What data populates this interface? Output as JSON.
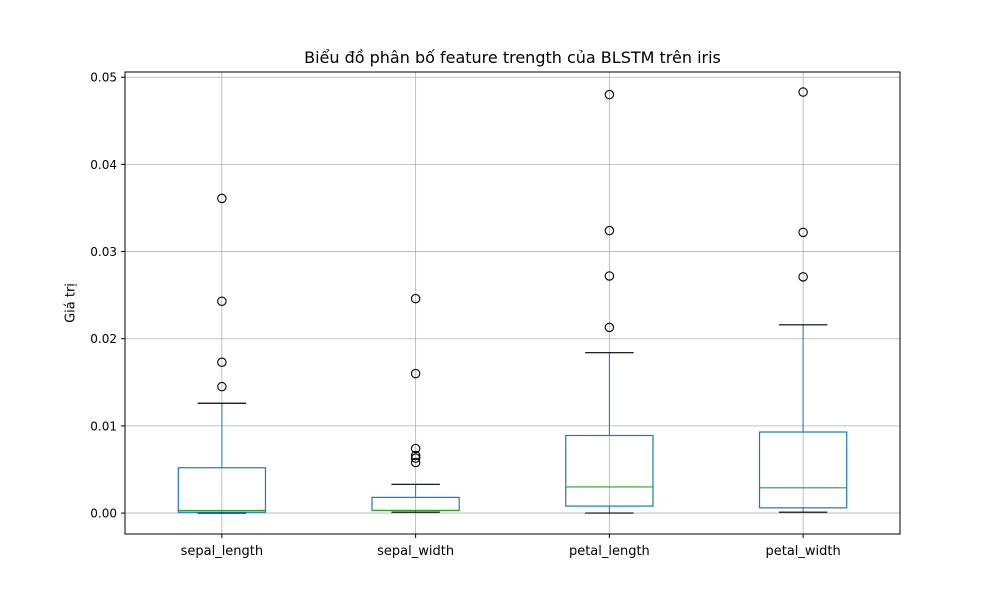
{
  "chart_data": {
    "type": "box",
    "title": "Biểu đồ phân bố feature trength của BLSTM trên iris",
    "xlabel": "",
    "ylabel": "Giá trị",
    "ylim": [
      -0.0024,
      0.0506
    ],
    "yticks": [
      0.0,
      0.01,
      0.02,
      0.03,
      0.04,
      0.05
    ],
    "ytick_labels": [
      "0.00",
      "0.01",
      "0.02",
      "0.03",
      "0.04",
      "0.05"
    ],
    "grid": true,
    "colors": {
      "box": "#1f77b4",
      "median": "#2ca02c",
      "whisker": "#1f77b4",
      "cap": "#000000",
      "grid": "#b0b0b0"
    },
    "categories": [
      "sepal_length",
      "sepal_width",
      "petal_length",
      "petal_width"
    ],
    "boxes": [
      {
        "category": "sepal_length",
        "whislo": 0.0,
        "q1": 0.0001,
        "median": 0.0003,
        "q3": 0.0052,
        "whishi": 0.0126,
        "fliers": [
          0.0145,
          0.0173,
          0.0243,
          0.0361
        ]
      },
      {
        "category": "sepal_width",
        "whislo": 0.0001,
        "q1": 0.0003,
        "median": 0.0003,
        "q3": 0.0018,
        "whishi": 0.0033,
        "fliers": [
          0.0058,
          0.0063,
          0.0066,
          0.0074,
          0.016,
          0.0246
        ]
      },
      {
        "category": "petal_length",
        "whislo": 0.0,
        "q1": 0.0008,
        "median": 0.003,
        "q3": 0.0089,
        "whishi": 0.0184,
        "fliers": [
          0.0213,
          0.0272,
          0.0324,
          0.048
        ]
      },
      {
        "category": "petal_width",
        "whislo": 0.0001,
        "q1": 0.0006,
        "median": 0.0029,
        "q3": 0.0093,
        "whishi": 0.0216,
        "fliers": [
          0.0271,
          0.0322,
          0.0483
        ]
      }
    ]
  }
}
